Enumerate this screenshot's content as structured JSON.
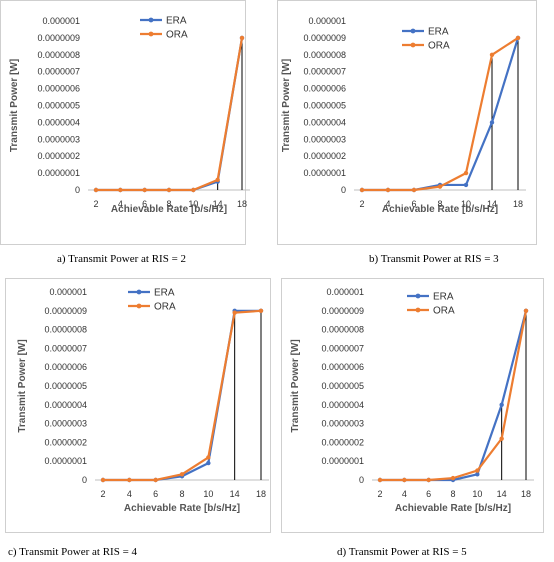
{
  "colors": {
    "era": "#4472C4",
    "ora": "#ED7D31",
    "drop": "#000000",
    "axis": "#bfbfbf"
  },
  "chart_data": [
    {
      "type": "line",
      "caption": "a) Transmit Power at RIS = 2",
      "categories": [
        "2",
        "4",
        "6",
        "8",
        "10",
        "14",
        "18"
      ],
      "xlabel": "Achievable Rate [b/s/Hz]",
      "ylabel": "Transmit Power [W]",
      "yticks": [
        "0",
        "0.0000001",
        "0.0000002",
        "0.0000003",
        "0.0000004",
        "0.0000005",
        "0.0000006",
        "0.0000007",
        "0.0000008",
        "0.0000009",
        "0.000001"
      ],
      "ylim": [
        0,
        1e-06
      ],
      "legend_position": "top-center",
      "series": [
        {
          "name": "ERA",
          "values": [
            0,
            0,
            0,
            0,
            0,
            5e-08,
            9e-07
          ]
        },
        {
          "name": "ORA",
          "values": [
            0,
            0,
            0,
            0,
            0,
            6e-08,
            9e-07
          ]
        }
      ]
    },
    {
      "type": "line",
      "caption": "b) Transmit Power at RIS = 3",
      "categories": [
        "2",
        "4",
        "6",
        "8",
        "10",
        "14",
        "18"
      ],
      "xlabel": "Achievable Rate [b/s/Hz]",
      "ylabel": "Transmit Power [W]",
      "yticks": [
        "0",
        "0.0000001",
        "0.0000002",
        "0.0000003",
        "0.0000004",
        "0.0000005",
        "0.0000006",
        "0.0000007",
        "0.0000008",
        "0.0000009",
        "0.000001"
      ],
      "ylim": [
        0,
        1e-06
      ],
      "legend_position": "top-center",
      "series": [
        {
          "name": "ERA",
          "values": [
            0,
            0,
            0,
            3e-08,
            3e-08,
            4e-07,
            9e-07
          ]
        },
        {
          "name": "ORA",
          "values": [
            0,
            0,
            0,
            2e-08,
            1e-07,
            8e-07,
            9e-07
          ]
        }
      ]
    },
    {
      "type": "line",
      "caption": "c) Transmit Power at RIS = 4",
      "categories": [
        "2",
        "4",
        "6",
        "8",
        "10",
        "14",
        "18"
      ],
      "xlabel": "Achievable Rate [b/s/Hz]",
      "ylabel": "Transmit Power [W]",
      "yticks": [
        "0",
        "0.0000001",
        "0.0000002",
        "0.0000003",
        "0.0000004",
        "0.0000005",
        "0.0000006",
        "0.0000007",
        "0.0000008",
        "0.0000009",
        "0.000001"
      ],
      "ylim": [
        0,
        1e-06
      ],
      "legend_position": "top-center",
      "series": [
        {
          "name": "ERA",
          "values": [
            0,
            0,
            0,
            2e-08,
            9e-08,
            9e-07,
            9e-07
          ]
        },
        {
          "name": "ORA",
          "values": [
            0,
            0,
            0,
            3e-08,
            1.2e-07,
            8.9e-07,
            9e-07
          ]
        }
      ]
    },
    {
      "type": "line",
      "caption": "d) Transmit Power at RIS = 5",
      "categories": [
        "2",
        "4",
        "6",
        "8",
        "10",
        "14",
        "18"
      ],
      "xlabel": "Achievable Rate [b/s/Hz]",
      "ylabel": "Transmit Power [W]",
      "yticks": [
        "0",
        "0.0000001",
        "0.0000002",
        "0.0000003",
        "0.0000004",
        "0.0000005",
        "0.0000006",
        "0.0000007",
        "0.0000008",
        "0.0000009",
        "0.000001"
      ],
      "ylim": [
        0,
        1e-06
      ],
      "legend_position": "top-left",
      "series": [
        {
          "name": "ERA",
          "values": [
            0,
            0,
            0,
            0,
            3e-08,
            4e-07,
            9e-07
          ]
        },
        {
          "name": "ORA",
          "values": [
            0,
            0,
            0,
            1e-08,
            5e-08,
            2.2e-07,
            9e-07
          ]
        }
      ]
    }
  ]
}
